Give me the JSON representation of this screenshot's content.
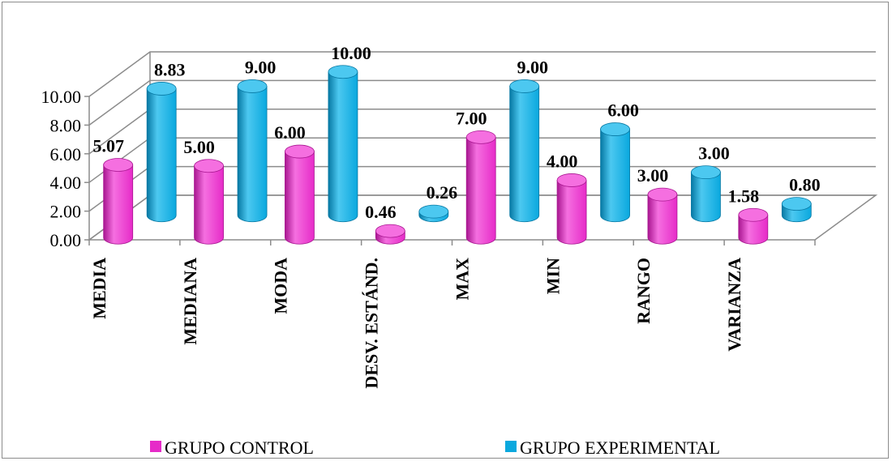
{
  "chart_data": {
    "type": "bar",
    "categories": [
      "MEDIA",
      "MEDIANA",
      "MODA",
      "DESV. ESTÁND.",
      "MAX",
      "MIN",
      "RANGO",
      "VARIANZA"
    ],
    "series": [
      {
        "name": "GRUPO CONTROL",
        "values": [
          5.07,
          5.0,
          6.0,
          0.46,
          7.0,
          4.0,
          3.0,
          1.58
        ],
        "labels": [
          "5.07",
          "5.00",
          "6.00",
          "0.46",
          "7.00",
          "4.00",
          "3.00",
          "1.58"
        ],
        "color": "#e62bc8",
        "color_light": "#f56fe0",
        "color_dark": "#a81690"
      },
      {
        "name": "GRUPO EXPERIMENTAL",
        "values": [
          8.83,
          9.0,
          10.0,
          0.26,
          9.0,
          6.0,
          3.0,
          0.8
        ],
        "labels": [
          "8.83",
          "9.00",
          "10.00",
          "0.26",
          "9.00",
          "6.00",
          "3.00",
          "0.80"
        ],
        "color": "#0aa8de",
        "color_light": "#4cc8f0",
        "color_dark": "#0678a3"
      }
    ],
    "y_ticks": [
      "0.00",
      "2.00",
      "4.00",
      "6.00",
      "8.00",
      "10.00"
    ],
    "ylim": [
      0,
      10
    ],
    "grid": true,
    "three_d": true,
    "shape": "cylinder",
    "legend_position": "bottom"
  }
}
